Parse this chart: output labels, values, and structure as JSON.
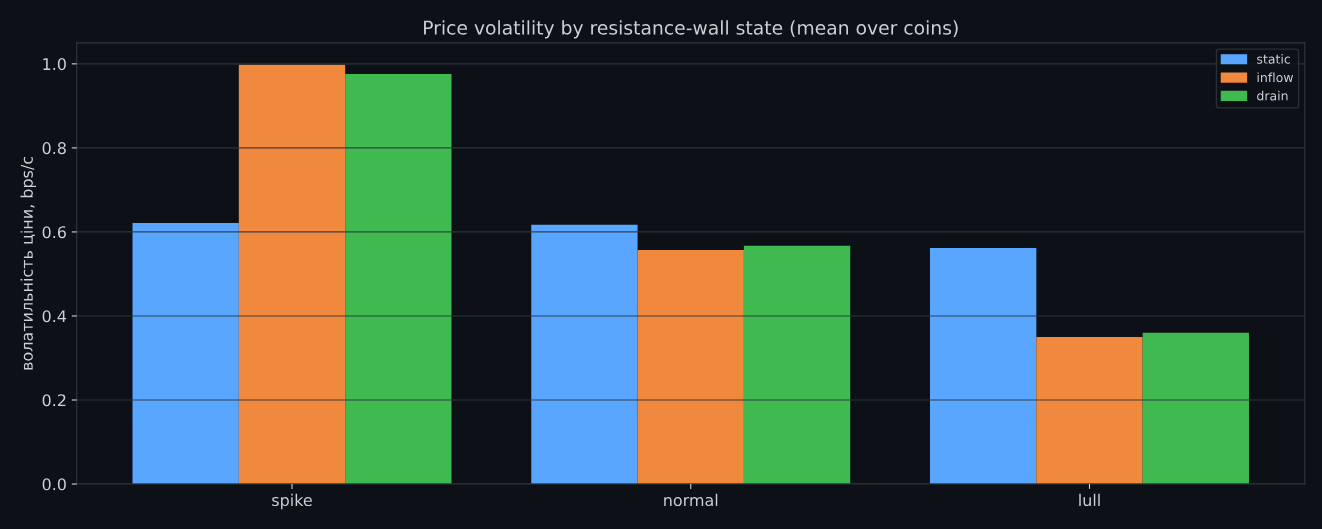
{
  "chart_data": {
    "type": "bar",
    "title": "Price volatility by resistance-wall state (mean over coins)",
    "ylabel": "волатильність ціни, bps/с",
    "categories": [
      "spike",
      "normal",
      "lull"
    ],
    "series": [
      {
        "name": "static",
        "color": "#58a6ff",
        "values": [
          0.621,
          0.617,
          0.562
        ]
      },
      {
        "name": "inflow",
        "color": "#f0883e",
        "values": [
          0.998,
          0.557,
          0.35
        ]
      },
      {
        "name": "drain",
        "color": "#3fb950",
        "values": [
          0.976,
          0.567,
          0.36
        ]
      }
    ],
    "ylim": [
      0,
      1.05
    ],
    "yticks": [
      {
        "value": 0,
        "label": "0.0"
      },
      0.2,
      0.4,
      0.6,
      0.8,
      {
        "value": 1,
        "label": "1.0"
      }
    ],
    "grid": "y",
    "legend": "top right"
  }
}
